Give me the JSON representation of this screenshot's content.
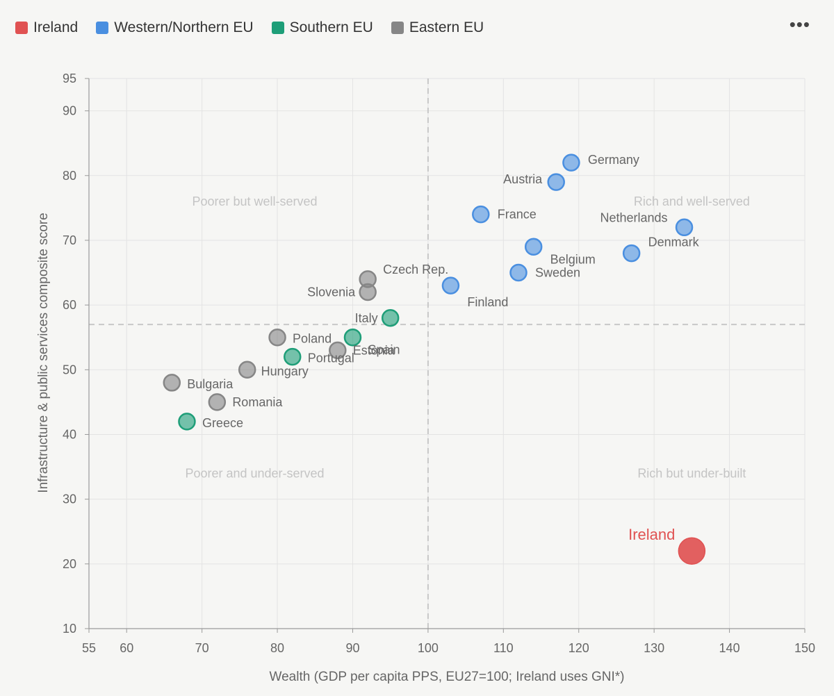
{
  "legend": {
    "items": [
      {
        "label": "Ireland",
        "color": "#e05252"
      },
      {
        "label": "Western/Northern EU",
        "color": "#4a8fe0"
      },
      {
        "label": "Southern EU",
        "color": "#1e9e78"
      },
      {
        "label": "Eastern EU",
        "color": "#868686"
      }
    ]
  },
  "menu_icon": "more-dots-icon",
  "chart_data": {
    "type": "scatter",
    "xlabel": "Wealth (GDP per capita PPS, EU27=100; Ireland uses GNI*)",
    "ylabel": "Infrastructure & public services composite score",
    "xlim": [
      55,
      150
    ],
    "ylim": [
      10,
      95
    ],
    "xticks": [
      55,
      60,
      70,
      80,
      90,
      100,
      110,
      120,
      130,
      140,
      150
    ],
    "yticks": [
      10,
      20,
      30,
      40,
      50,
      60,
      70,
      80,
      90,
      95
    ],
    "grid": true,
    "legend_position": "top-left",
    "reference_lines": {
      "x": 100,
      "y": 57
    },
    "quadrant_labels": [
      {
        "text": "Poorer but well-served",
        "x": 77,
        "y": 76
      },
      {
        "text": "Rich and well-served",
        "x": 135,
        "y": 76
      },
      {
        "text": "Poorer and under-served",
        "x": 77,
        "y": 34
      },
      {
        "text": "Rich but under-built",
        "x": 135,
        "y": 34
      }
    ],
    "series": [
      {
        "name": "Ireland",
        "color": "#e05252",
        "points": [
          {
            "label": "Ireland",
            "x": 135,
            "y": 22
          }
        ]
      },
      {
        "name": "Western/Northern EU",
        "color": "#4a8fe0",
        "points": [
          {
            "label": "Germany",
            "x": 119,
            "y": 82
          },
          {
            "label": "Austria",
            "x": 117,
            "y": 79
          },
          {
            "label": "France",
            "x": 107,
            "y": 74
          },
          {
            "label": "Netherlands",
            "x": 134,
            "y": 72
          },
          {
            "label": "Belgium",
            "x": 114,
            "y": 69
          },
          {
            "label": "Denmark",
            "x": 127,
            "y": 68
          },
          {
            "label": "Sweden",
            "x": 112,
            "y": 65
          },
          {
            "label": "Finland",
            "x": 103,
            "y": 63
          }
        ]
      },
      {
        "name": "Southern EU",
        "color": "#1e9e78",
        "points": [
          {
            "label": "Italy",
            "x": 95,
            "y": 58
          },
          {
            "label": "Spain",
            "x": 90,
            "y": 55
          },
          {
            "label": "Portugal",
            "x": 82,
            "y": 52
          },
          {
            "label": "Greece",
            "x": 68,
            "y": 42
          }
        ]
      },
      {
        "name": "Eastern EU",
        "color": "#868686",
        "points": [
          {
            "label": "Czech Rep.",
            "x": 92,
            "y": 64
          },
          {
            "label": "Slovenia",
            "x": 92,
            "y": 62
          },
          {
            "label": "Poland",
            "x": 80,
            "y": 55
          },
          {
            "label": "Estonia",
            "x": 88,
            "y": 53
          },
          {
            "label": "Hungary",
            "x": 76,
            "y": 50
          },
          {
            "label": "Bulgaria",
            "x": 66,
            "y": 48
          },
          {
            "label": "Romania",
            "x": 72,
            "y": 45
          }
        ]
      }
    ]
  }
}
